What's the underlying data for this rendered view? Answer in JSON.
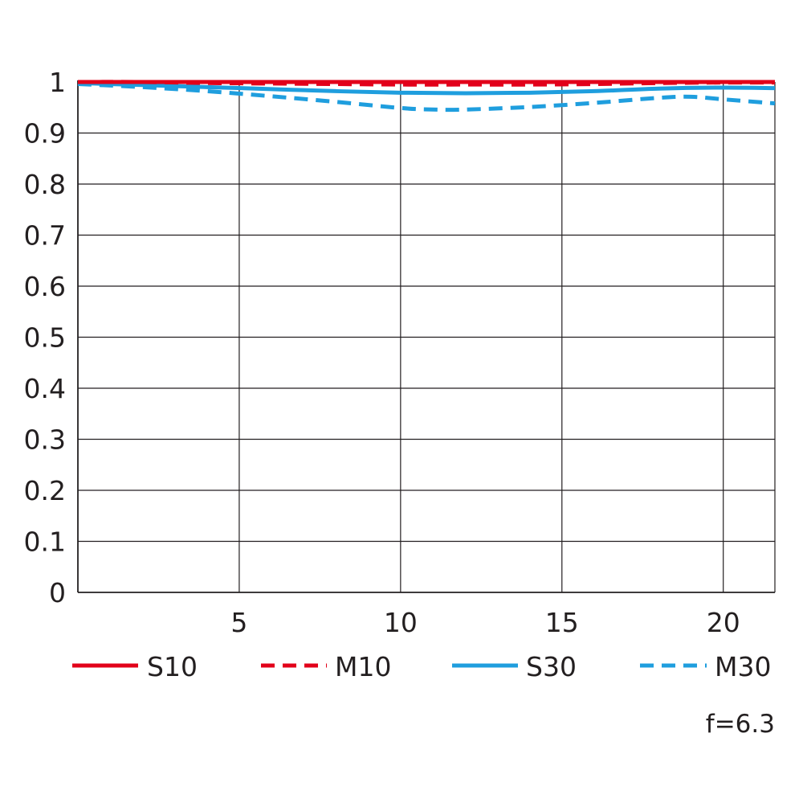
{
  "chart_data": {
    "type": "line",
    "title": "",
    "xlabel": "",
    "ylabel": "",
    "xlim": [
      0,
      21.6
    ],
    "ylim": [
      0,
      1
    ],
    "x_ticks": [
      5,
      10,
      15,
      20
    ],
    "x_tick_labels": [
      "5",
      "10",
      "15",
      "20"
    ],
    "y_ticks": [
      0,
      0.1,
      0.2,
      0.3,
      0.4,
      0.5,
      0.6,
      0.7,
      0.8,
      0.9,
      1
    ],
    "y_tick_labels": [
      "0",
      "0.1",
      "0.2",
      "0.3",
      "0.4",
      "0.5",
      "0.6",
      "0.7",
      "0.8",
      "0.9",
      "1"
    ],
    "grid": true,
    "legend_position": "bottom",
    "series": [
      {
        "name": "S10",
        "color": "#e2001a",
        "dash": "solid",
        "x": [
          0,
          2,
          4,
          6,
          8,
          10,
          12,
          14,
          16,
          18,
          20,
          21.6
        ],
        "y": [
          1.0,
          1.0,
          1.0,
          1.0,
          1.0,
          1.0,
          1.0,
          1.0,
          1.0,
          1.0,
          1.0,
          1.0
        ]
      },
      {
        "name": "M10",
        "color": "#e2001a",
        "dash": "dashed",
        "x": [
          0,
          2,
          4,
          6,
          8,
          10,
          12,
          14,
          16,
          18,
          20,
          21.6
        ],
        "y": [
          1.0,
          1.0,
          0.998,
          0.997,
          0.996,
          0.995,
          0.995,
          0.995,
          0.996,
          0.998,
          0.999,
          0.999
        ]
      },
      {
        "name": "S30",
        "color": "#1f9ede",
        "dash": "solid",
        "x": [
          0,
          2,
          4,
          6,
          8,
          10,
          12,
          14,
          16,
          18,
          20,
          21.6
        ],
        "y": [
          0.998,
          0.994,
          0.99,
          0.986,
          0.982,
          0.979,
          0.978,
          0.979,
          0.982,
          0.987,
          0.989,
          0.988
        ]
      },
      {
        "name": "M30",
        "color": "#1f9ede",
        "dash": "dashed",
        "x": [
          0,
          2,
          4,
          6,
          8,
          10,
          11,
          12,
          14,
          16,
          18,
          19,
          20,
          21.6
        ],
        "y": [
          0.996,
          0.99,
          0.982,
          0.972,
          0.961,
          0.949,
          0.946,
          0.946,
          0.951,
          0.959,
          0.969,
          0.971,
          0.966,
          0.958
        ]
      }
    ],
    "annotations": [
      "f=6.3"
    ]
  }
}
